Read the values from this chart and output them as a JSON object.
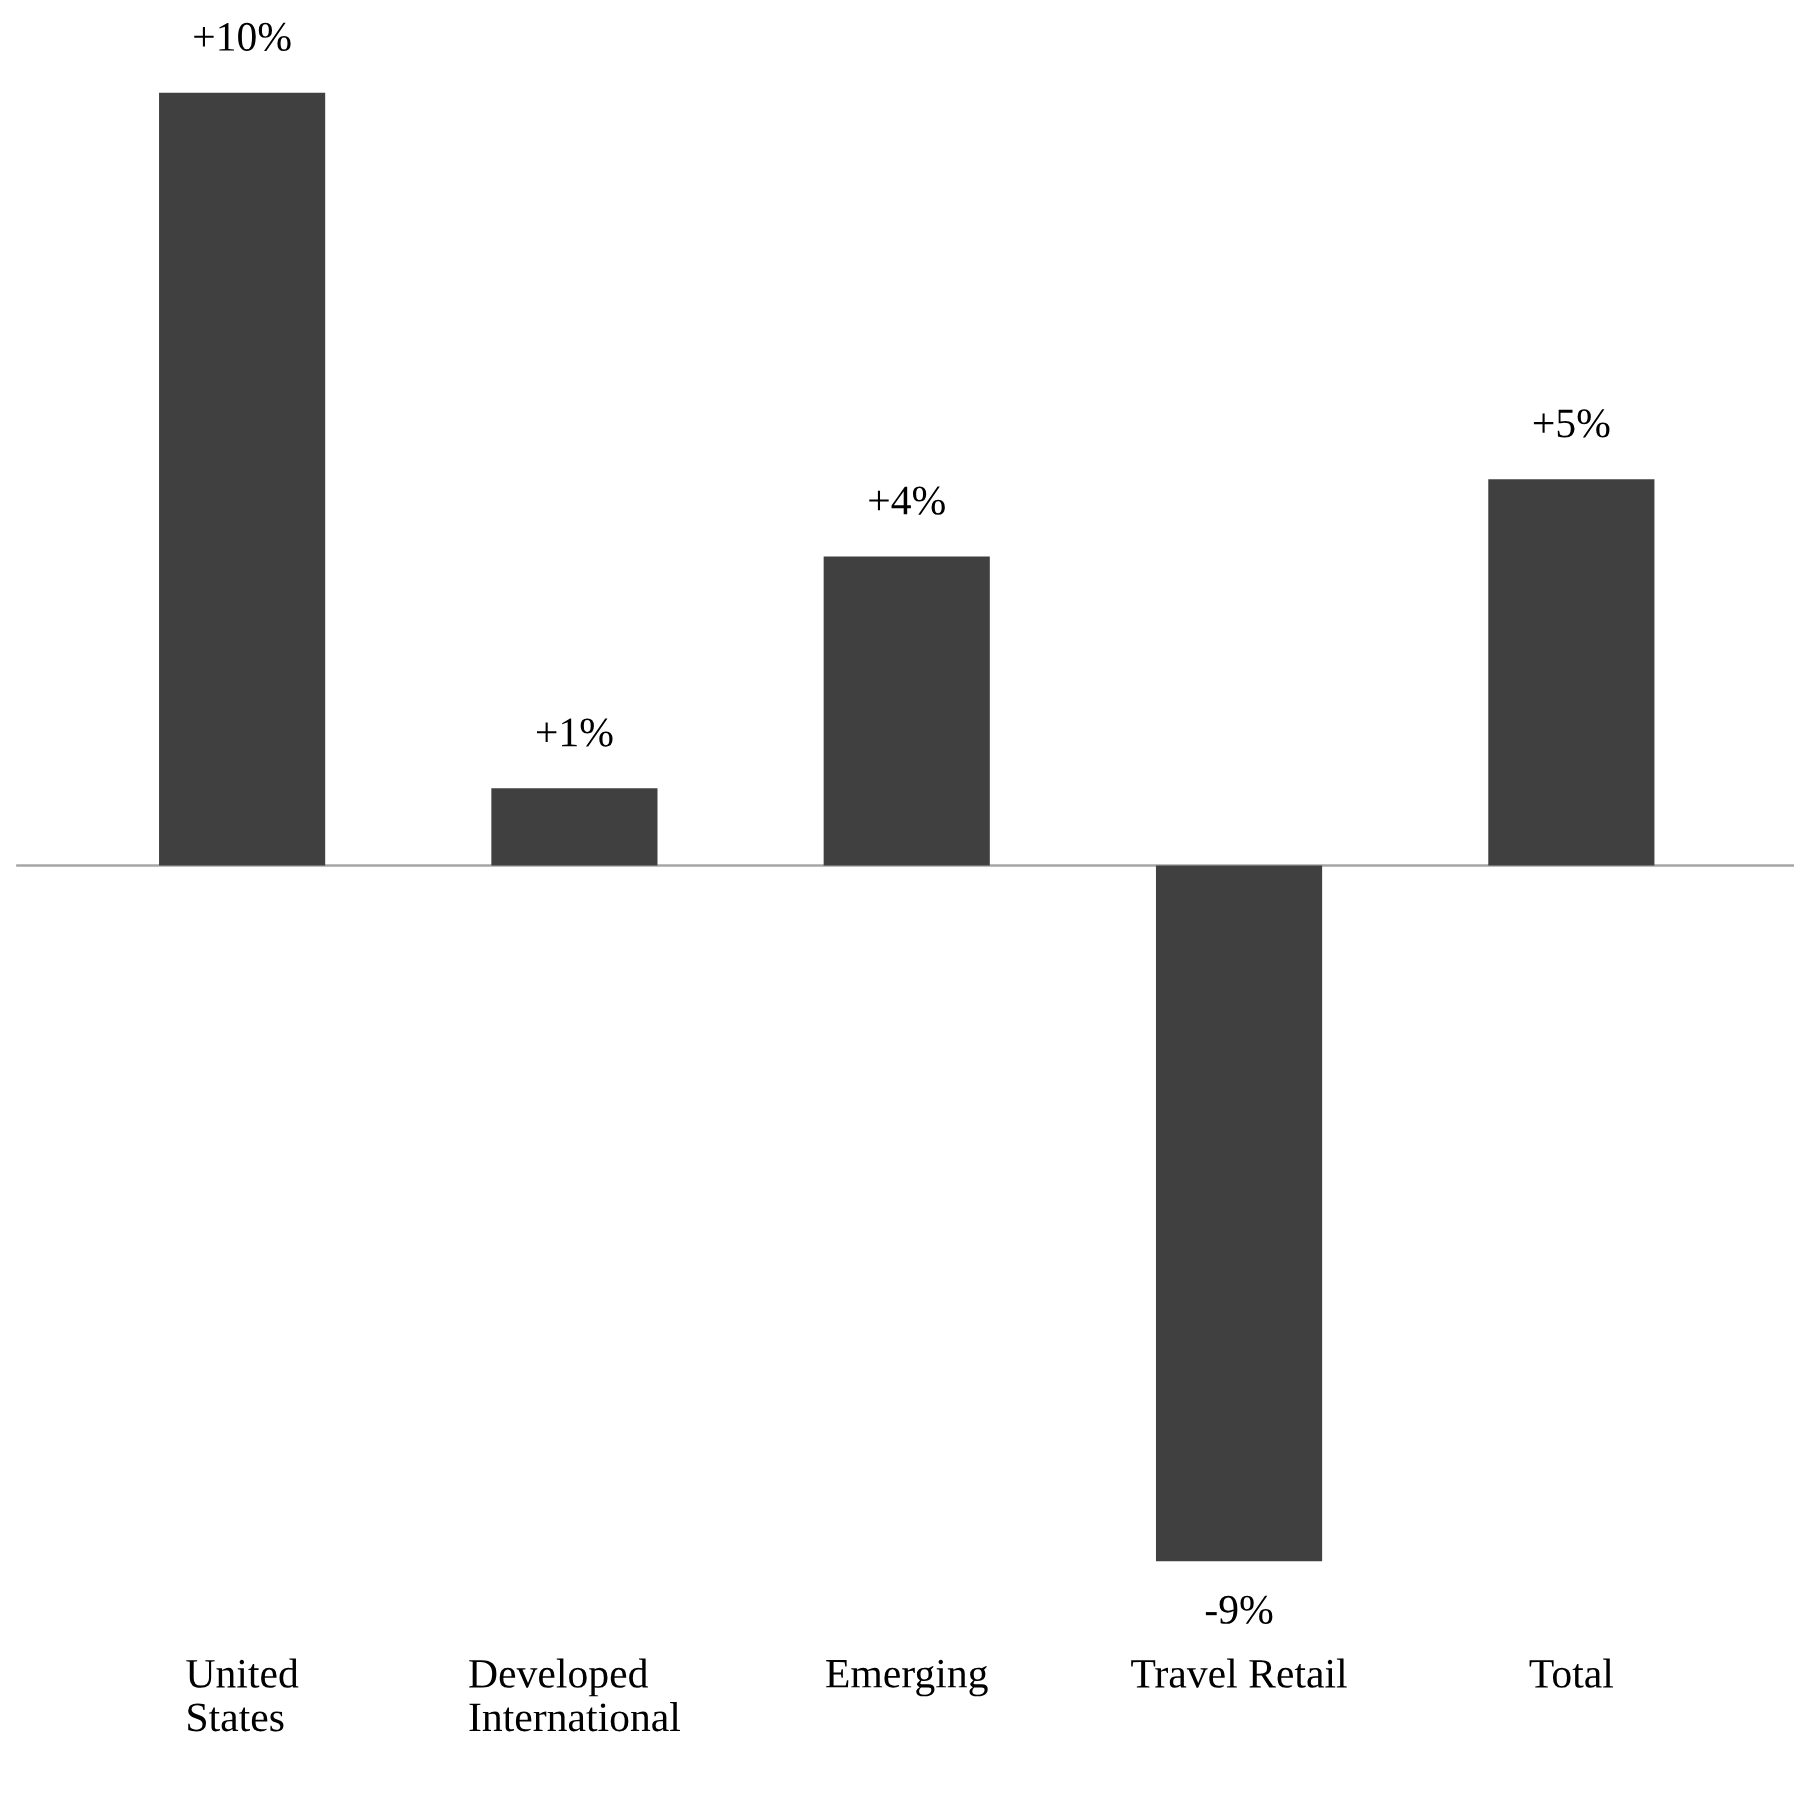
{
  "chart_data": {
    "type": "bar",
    "categories": [
      "United\nStates",
      "Developed\nInternational",
      "Emerging",
      "Travel Retail",
      "Total"
    ],
    "values": [
      10,
      1,
      4,
      -9,
      5
    ],
    "value_labels": [
      "+10%",
      "+1%",
      "+4%",
      "-9%",
      "+5%"
    ],
    "color": "#404040",
    "grid": false,
    "legend": false
  }
}
